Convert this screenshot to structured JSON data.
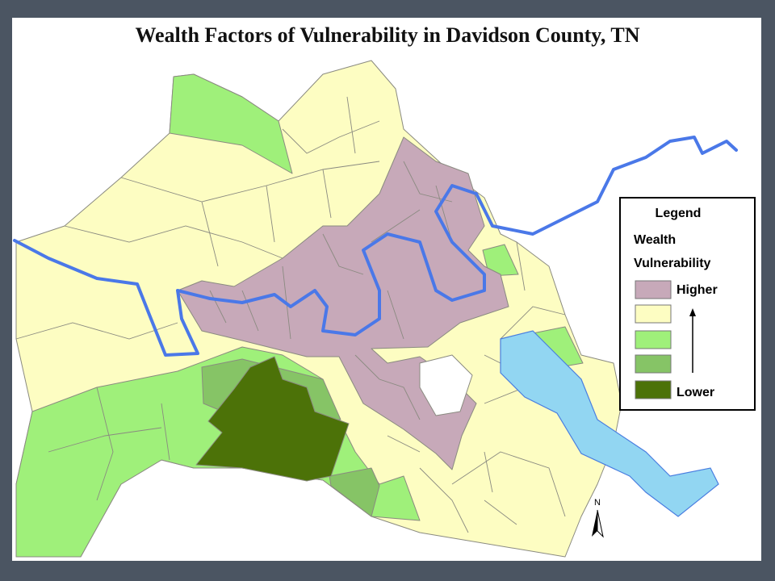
{
  "title": "Wealth Factors of Vulnerability in Davidson County, TN",
  "legend": {
    "heading": "Legend",
    "subtitle_lines": [
      "Wealth",
      "Vulnerability"
    ],
    "swatches": [
      "#c7a9b9",
      "#fdfdc2",
      "#9ff07a",
      "#86c466",
      "#4c7208"
    ],
    "high_label": "Higher",
    "low_label": "Lower"
  },
  "north_label": "N"
}
